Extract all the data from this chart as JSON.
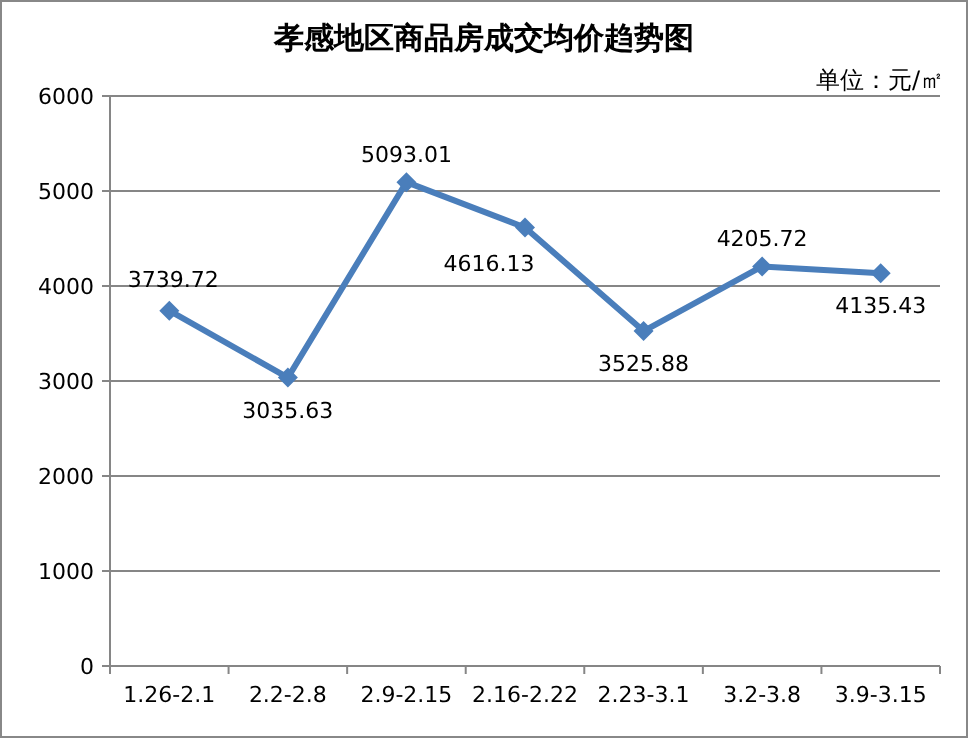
{
  "chart_data": {
    "type": "line",
    "title": "孝感地区商品房成交均价趋势图",
    "annotations": [
      "单位：元/㎡"
    ],
    "categories": [
      "1.26-2.1",
      "2.2-2.8",
      "2.9-2.15",
      "2.16-2.22",
      "2.23-3.1",
      "3.2-3.8",
      "3.9-3.15"
    ],
    "series": [
      {
        "color": "#4a7ebb",
        "values": [
          3739.72,
          3035.63,
          5093.01,
          4616.13,
          3525.88,
          4205.72,
          4135.43
        ]
      }
    ],
    "ylim": [
      0,
      6000
    ],
    "yticks": [
      0,
      1000,
      2000,
      3000,
      4000,
      5000,
      6000
    ],
    "grid": "y",
    "marker": "diamond",
    "line_style": "solid",
    "data_labels": true
  }
}
